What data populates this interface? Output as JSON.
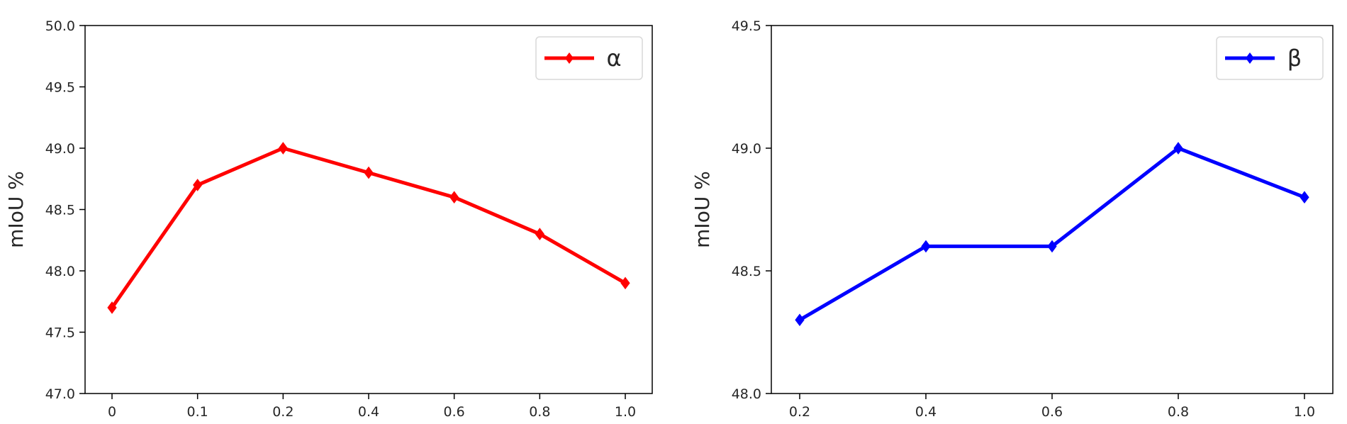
{
  "chart_data": [
    {
      "type": "line",
      "title": "",
      "xlabel": "",
      "ylabel": "mIoU %",
      "ylim": [
        47.0,
        50.0
      ],
      "yticks": [
        "47.0",
        "47.5",
        "48.0",
        "48.5",
        "49.0",
        "49.5",
        "50.0"
      ],
      "categories": [
        "0",
        "0.1",
        "0.2",
        "0.4",
        "0.6",
        "0.8",
        "1.0"
      ],
      "legend_position": "top-right",
      "grid": false,
      "series": [
        {
          "name": "α",
          "color": "#ff0000",
          "marker": "diamond",
          "values": [
            47.7,
            48.7,
            49.0,
            48.8,
            48.6,
            48.3,
            47.9
          ]
        }
      ]
    },
    {
      "type": "line",
      "title": "",
      "xlabel": "",
      "ylabel": "mIoU %",
      "ylim": [
        48.0,
        49.5
      ],
      "yticks": [
        "48.0",
        "48.5",
        "49.0",
        "49.5"
      ],
      "categories": [
        "0.2",
        "0.4",
        "0.6",
        "0.8",
        "1.0"
      ],
      "legend_position": "top-right",
      "grid": false,
      "series": [
        {
          "name": "β",
          "color": "#0000ff",
          "marker": "diamond",
          "values": [
            48.3,
            48.6,
            48.6,
            49.0,
            48.8
          ]
        }
      ]
    }
  ]
}
